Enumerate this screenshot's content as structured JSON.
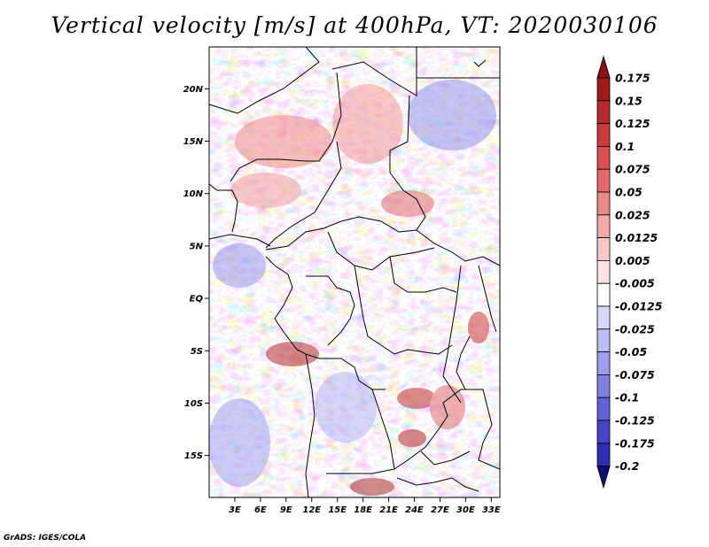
{
  "title": "Vertical velocity [m/s] at 400hPa, VT: 2020030106",
  "credit": "GrADS: IGES/COLA",
  "map": {
    "lat_range": [
      -19,
      24
    ],
    "lon_range": [
      0,
      34
    ],
    "lat_ticks": [
      {
        "value": 20,
        "label": "20N"
      },
      {
        "value": 15,
        "label": "15N"
      },
      {
        "value": 10,
        "label": "10N"
      },
      {
        "value": 5,
        "label": "5N"
      },
      {
        "value": 0,
        "label": "EQ"
      },
      {
        "value": -5,
        "label": "5S"
      },
      {
        "value": -10,
        "label": "10S"
      },
      {
        "value": -15,
        "label": "15S"
      }
    ],
    "lon_ticks": [
      {
        "value": 3,
        "label": "3E"
      },
      {
        "value": 6,
        "label": "6E"
      },
      {
        "value": 9,
        "label": "9E"
      },
      {
        "value": 12,
        "label": "12E"
      },
      {
        "value": 15,
        "label": "15E"
      },
      {
        "value": 18,
        "label": "18E"
      },
      {
        "value": 21,
        "label": "21E"
      },
      {
        "value": 24,
        "label": "24E"
      },
      {
        "value": 27,
        "label": "27E"
      },
      {
        "value": 30,
        "label": "30E"
      },
      {
        "value": 33,
        "label": "33E"
      }
    ]
  },
  "colorbar": {
    "levels": [
      {
        "label": "0.175",
        "color": "#a11a1a"
      },
      {
        "label": "0.15",
        "color": "#b52a2a"
      },
      {
        "label": "0.125",
        "color": "#c83c3c"
      },
      {
        "label": "0.1",
        "color": "#d85050"
      },
      {
        "label": "0.075",
        "color": "#e06a6a"
      },
      {
        "label": "0.05",
        "color": "#ea8888"
      },
      {
        "label": "0.025",
        "color": "#f4a8a8"
      },
      {
        "label": "0.0125",
        "color": "#f8c8c8"
      },
      {
        "label": "0.005",
        "color": "#fce4e4"
      },
      {
        "label": "-0.005",
        "color": "#ffffff"
      },
      {
        "label": "-0.0125",
        "color": "#d8d8fc"
      },
      {
        "label": "-0.025",
        "color": "#bcbcf6"
      },
      {
        "label": "-0.05",
        "color": "#9e9eee"
      },
      {
        "label": "-0.075",
        "color": "#8080e4"
      },
      {
        "label": "-0.1",
        "color": "#6262d6"
      },
      {
        "label": "-0.125",
        "color": "#4646c4"
      },
      {
        "label": "-0.175",
        "color": "#2e2eb0"
      },
      {
        "label": "-0.2",
        "color": "#1c1c98"
      }
    ],
    "top_cap_color": "#8e1010",
    "bottom_cap_color": "#10107a"
  }
}
